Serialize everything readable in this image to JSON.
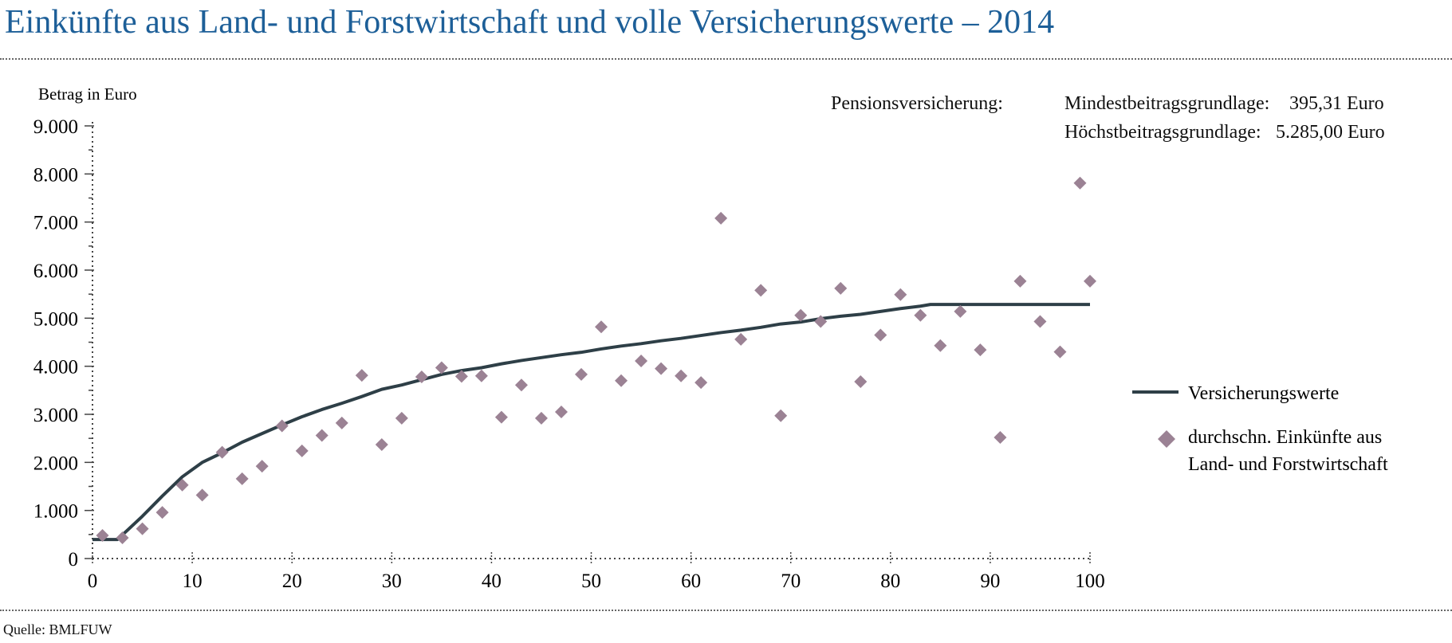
{
  "title": "Einkünfte aus Land- und Forstwirtschaft und volle Versicherungswerte – 2014",
  "source": "Quelle: BMLFUW",
  "notes": {
    "label": "Pensionsversicherung:",
    "min_label": "Mindestbeitragsgrundlage:",
    "min_value": "395,31 Euro",
    "max_label": "Höchstbeitragsgrundlage:",
    "max_value": "5.285,00 Euro"
  },
  "chart_data": {
    "type": "line+scatter",
    "ylabel": "Betrag in Euro",
    "xlabel": "",
    "xlim": [
      0,
      100
    ],
    "ylim": [
      0,
      9000
    ],
    "xticks": [
      0,
      10,
      20,
      30,
      40,
      50,
      60,
      70,
      80,
      90,
      100
    ],
    "xtick_labels": [
      "0",
      "10",
      "20",
      "30",
      "40",
      "50",
      "60",
      "70",
      "80",
      "90",
      "100"
    ],
    "yticks": [
      0,
      1000,
      2000,
      3000,
      4000,
      5000,
      6000,
      7000,
      8000,
      9000
    ],
    "ytick_labels": [
      "0",
      "1.000",
      "2.000",
      "3.000",
      "4.000",
      "5.000",
      "6.000",
      "7.000",
      "8.000",
      "9.000"
    ],
    "legend_position": "right",
    "series": [
      {
        "name": "Versicherungswerte",
        "type": "line",
        "color": "#2e3f47",
        "x": [
          0,
          2.5,
          5,
          7,
          9,
          11,
          13,
          15,
          17,
          19,
          21,
          23,
          25,
          27,
          29,
          31,
          33,
          35,
          37,
          39,
          41,
          43,
          45,
          47,
          49,
          51,
          53,
          55,
          57,
          59,
          61,
          63,
          65,
          67,
          69,
          71,
          73,
          75,
          77,
          79,
          81,
          83,
          84,
          100
        ],
        "y": [
          395,
          395,
          880,
          1300,
          1700,
          2000,
          2200,
          2420,
          2600,
          2780,
          2950,
          3100,
          3230,
          3370,
          3520,
          3610,
          3720,
          3830,
          3910,
          3970,
          4050,
          4120,
          4180,
          4240,
          4290,
          4360,
          4420,
          4470,
          4530,
          4580,
          4640,
          4700,
          4750,
          4810,
          4880,
          4920,
          4990,
          5040,
          5080,
          5140,
          5200,
          5250,
          5285,
          5285
        ]
      },
      {
        "name_lines": [
          "durchschn. Einkünfte aus",
          "Land- und Forstwirtschaft"
        ],
        "type": "scatter",
        "color": "#9b8294",
        "x": [
          1,
          3,
          5,
          7,
          9,
          11,
          13,
          15,
          17,
          19,
          21,
          23,
          25,
          27,
          29,
          31,
          33,
          35,
          37,
          39,
          41,
          43,
          45,
          47,
          49,
          51,
          53,
          55,
          57,
          59,
          61,
          63,
          65,
          67,
          69,
          71,
          73,
          75,
          77,
          79,
          81,
          83,
          85,
          87,
          89,
          91,
          93,
          95,
          97,
          99,
          100
        ],
        "y": [
          480,
          430,
          620,
          960,
          1530,
          1320,
          2210,
          1660,
          1920,
          2760,
          2240,
          2560,
          2820,
          3810,
          2370,
          2920,
          3780,
          3970,
          3790,
          3800,
          2940,
          3610,
          2920,
          3050,
          3830,
          4820,
          3700,
          4110,
          3950,
          3800,
          3660,
          7080,
          4560,
          5580,
          2970,
          5060,
          4930,
          5620,
          3680,
          4650,
          5490,
          5060,
          4430,
          5140,
          4340,
          2520,
          5770,
          4930,
          4300,
          7810,
          5770
        ]
      }
    ]
  }
}
